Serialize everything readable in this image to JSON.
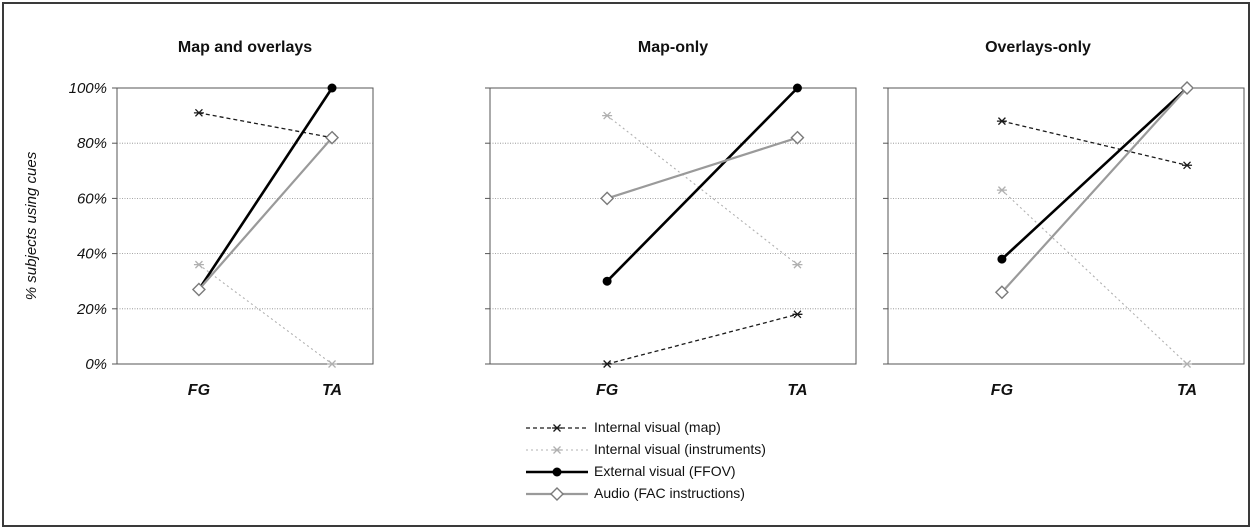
{
  "chart_data": [
    {
      "type": "line",
      "title": "Map and overlays",
      "ylabel": "% subjects using cues",
      "categories": [
        "FG",
        "TA"
      ],
      "yticks": [
        "0%",
        "20%",
        "40%",
        "60%",
        "80%",
        "100%"
      ],
      "ylim": [
        0,
        100
      ],
      "grid": true,
      "series": [
        {
          "name": "Internal visual (map)",
          "values": [
            91,
            82
          ]
        },
        {
          "name": "Internal visual (instruments)",
          "values": [
            36,
            0
          ]
        },
        {
          "name": "External visual (FFOV)",
          "values": [
            27,
            100
          ]
        },
        {
          "name": "Audio (FAC instructions)",
          "values": [
            27,
            82
          ]
        }
      ]
    },
    {
      "type": "line",
      "title": "Map-only",
      "categories": [
        "FG",
        "TA"
      ],
      "ylim": [
        0,
        100
      ],
      "grid": true,
      "series": [
        {
          "name": "Internal visual (map)",
          "values": [
            0,
            18
          ]
        },
        {
          "name": "Internal visual (instruments)",
          "values": [
            90,
            36
          ]
        },
        {
          "name": "External visual (FFOV)",
          "values": [
            30,
            100
          ]
        },
        {
          "name": "Audio (FAC instructions)",
          "values": [
            60,
            82
          ]
        }
      ]
    },
    {
      "type": "line",
      "title": "Overlays-only",
      "categories": [
        "FG",
        "TA"
      ],
      "ylim": [
        0,
        100
      ],
      "grid": true,
      "series": [
        {
          "name": "Internal visual (map)",
          "values": [
            88,
            72
          ]
        },
        {
          "name": "Internal visual (instruments)",
          "values": [
            63,
            0
          ]
        },
        {
          "name": "External visual (FFOV)",
          "values": [
            38,
            100
          ]
        },
        {
          "name": "Audio (FAC instructions)",
          "values": [
            26,
            100
          ]
        }
      ]
    }
  ],
  "legend": {
    "placement": "bottom-center",
    "items": [
      {
        "label": "Internal visual (map)",
        "style": "map"
      },
      {
        "label": "Internal visual (instruments)",
        "style": "instruments"
      },
      {
        "label": "External visual (FFOV)",
        "style": "ffov"
      },
      {
        "label": "Audio (FAC instructions)",
        "style": "audio"
      }
    ]
  },
  "colors": {
    "map": "#1a1a1a",
    "instruments": "#b0b0b0",
    "ffov": "#000000",
    "audio": "#9a9a9a",
    "grid": "#8a8a8a",
    "frame": "#3a3a3a"
  }
}
